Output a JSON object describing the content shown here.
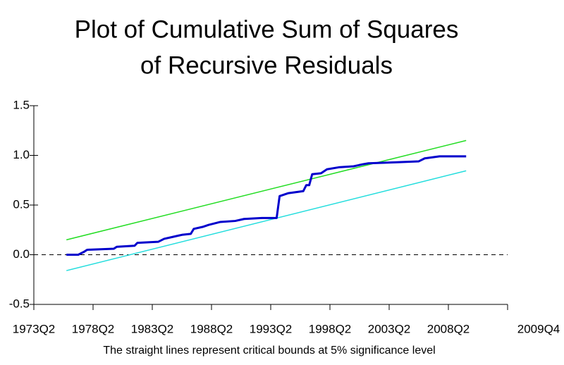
{
  "chart_data": {
    "type": "line",
    "title": [
      "Plot of Cumulative Sum of Squares",
      "of Recursive Residuals"
    ],
    "footnote": "The straight lines represent critical bounds at 5% significance level",
    "xlim": [
      1973.25,
      2013.25
    ],
    "xticks": [
      {
        "value": 1973.25,
        "label": "1973Q2"
      },
      {
        "value": 1978.25,
        "label": "1978Q2"
      },
      {
        "value": 1983.25,
        "label": "1983Q2"
      },
      {
        "value": 1988.25,
        "label": "1988Q2"
      },
      {
        "value": 1993.25,
        "label": "1993Q2"
      },
      {
        "value": 1998.25,
        "label": "1998Q2"
      },
      {
        "value": 2003.25,
        "label": "2003Q2"
      },
      {
        "value": 2008.25,
        "label": "2008Q2"
      }
    ],
    "x_end_label": "2009Q4",
    "ylim": [
      -0.5,
      1.5
    ],
    "yticks": [
      {
        "value": -0.5,
        "label": "-0.5"
      },
      {
        "value": 0,
        "label": "0.0"
      },
      {
        "value": 0.5,
        "label": "0.5"
      },
      {
        "value": 1,
        "label": "1.0"
      },
      {
        "value": 1.5,
        "label": "1.5"
      }
    ],
    "reference_line": 0,
    "series": [
      {
        "name": "Upper bound",
        "color": "#22dd22",
        "width": 1.5,
        "x": [
          1976.0,
          2009.75
        ],
        "values": [
          0.15,
          1.15
        ]
      },
      {
        "name": "Lower bound",
        "color": "#22dddd",
        "width": 1.5,
        "x": [
          1976.0,
          2009.75
        ],
        "values": [
          -0.16,
          0.845
        ]
      },
      {
        "name": "CUSUM of squares",
        "color": "#0000cc",
        "width": 3,
        "x": [
          1976.0,
          1977.0,
          1977.5,
          1977.75,
          1980.0,
          1980.25,
          1981.75,
          1982.0,
          1983.75,
          1984.25,
          1985.0,
          1985.75,
          1986.5,
          1986.75,
          1987.5,
          1988.0,
          1989.0,
          1990.25,
          1991.0,
          1992.5,
          1993.75,
          1994.0,
          1994.75,
          1996.0,
          1996.25,
          1996.5,
          1996.75,
          1997.5,
          1998.0,
          1999.0,
          2000.25,
          2001.0,
          2001.5,
          2003.75,
          2005.75,
          2006.25,
          2007.5,
          2009.75
        ],
        "values": [
          0.0,
          0.0,
          0.03,
          0.05,
          0.06,
          0.08,
          0.09,
          0.12,
          0.13,
          0.16,
          0.18,
          0.2,
          0.21,
          0.26,
          0.28,
          0.3,
          0.33,
          0.34,
          0.36,
          0.37,
          0.37,
          0.59,
          0.62,
          0.64,
          0.7,
          0.7,
          0.81,
          0.82,
          0.86,
          0.88,
          0.89,
          0.91,
          0.92,
          0.93,
          0.94,
          0.97,
          0.99,
          0.99
        ]
      }
    ]
  }
}
